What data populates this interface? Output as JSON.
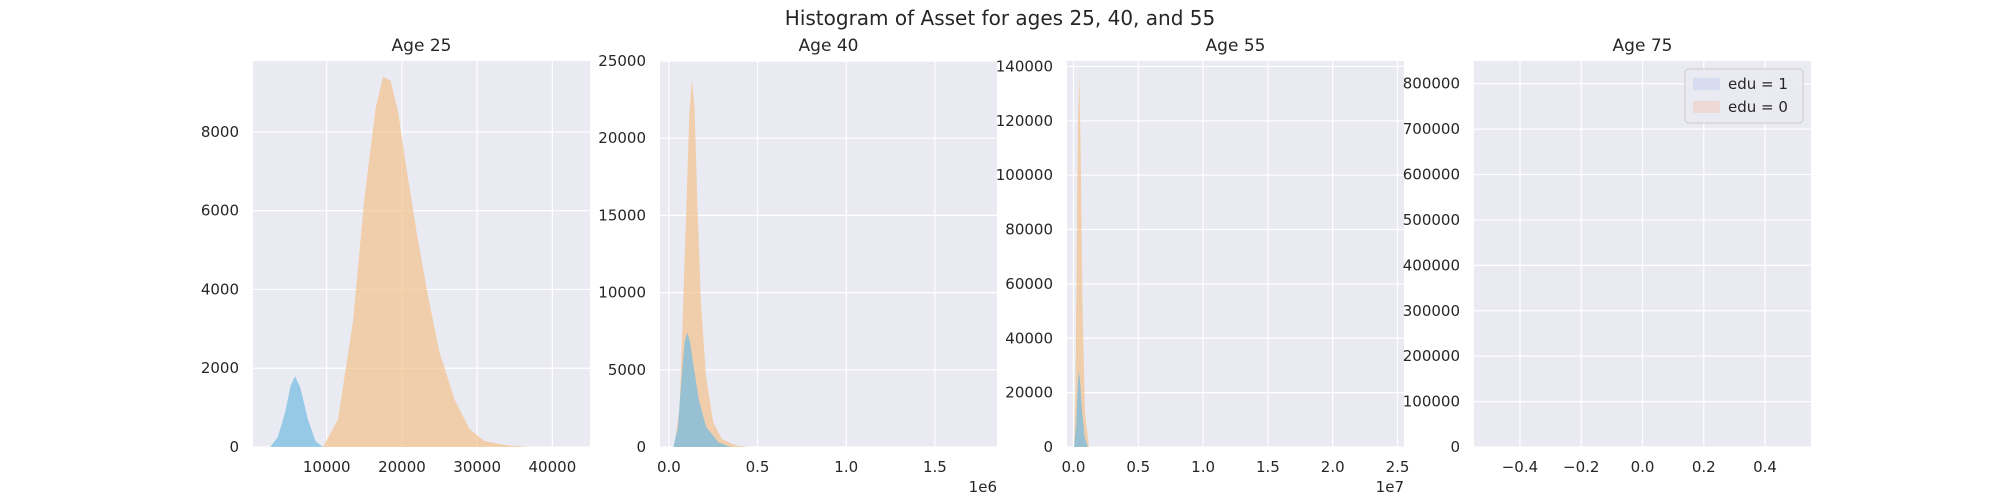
{
  "figure": {
    "title": "Histogram of Asset for ages 25, 40, and 55"
  },
  "colors": {
    "background": "#eaeaf2",
    "grid": "#ffffff",
    "edu1": "#74bde0",
    "edu0": "#f2c48f"
  },
  "chart_data": [
    {
      "type": "area",
      "title": "Age 25",
      "xlim": [
        200,
        45000
      ],
      "ylim": [
        0,
        9800
      ],
      "xticks": [
        10000,
        20000,
        30000,
        40000
      ],
      "xtick_labels": [
        "10000",
        "20000",
        "30000",
        "40000"
      ],
      "yticks": [
        0,
        2000,
        4000,
        6000,
        8000
      ],
      "ytick_labels": [
        "0",
        "2000",
        "4000",
        "6000",
        "8000"
      ],
      "x_offset_label": "",
      "grid": true,
      "series": [
        {
          "name": "edu = 0",
          "color_key": "edu0",
          "x": [
            9500,
            11500,
            13500,
            15000,
            16500,
            17500,
            18500,
            19500,
            20500,
            22000,
            23500,
            25000,
            27000,
            29000,
            31000,
            34000,
            37000
          ],
          "y": [
            0,
            700,
            3200,
            6300,
            8600,
            9400,
            9300,
            8500,
            7200,
            5400,
            3800,
            2400,
            1200,
            450,
            150,
            40,
            0
          ]
        },
        {
          "name": "edu = 1",
          "color_key": "edu1",
          "x": [
            2500,
            3500,
            4500,
            5200,
            5800,
            6500,
            7500,
            8500,
            9500
          ],
          "y": [
            0,
            250,
            900,
            1550,
            1800,
            1500,
            700,
            150,
            0
          ]
        }
      ]
    },
    {
      "type": "area",
      "title": "Age 40",
      "xlim": [
        -50000,
        1850000
      ],
      "ylim": [
        0,
        25000
      ],
      "xticks": [
        0,
        500000,
        1000000,
        1500000
      ],
      "xtick_labels": [
        "0.0",
        "0.5",
        "1.0",
        "1.5"
      ],
      "yticks": [
        0,
        5000,
        10000,
        15000,
        20000,
        25000
      ],
      "ytick_labels": [
        "0",
        "5000",
        "10000",
        "15000",
        "20000",
        "25000"
      ],
      "x_offset_label": "1e6",
      "grid": true,
      "series": [
        {
          "name": "edu = 0",
          "color_key": "edu0",
          "x": [
            30000,
            60000,
            80000,
            100000,
            115000,
            130000,
            145000,
            160000,
            180000,
            210000,
            250000,
            300000,
            380000,
            450000
          ],
          "y": [
            0,
            2500,
            9000,
            16000,
            21500,
            23800,
            22000,
            16000,
            9500,
            4500,
            1600,
            500,
            100,
            0
          ]
        },
        {
          "name": "edu = 1",
          "color_key": "edu1",
          "x": [
            25000,
            50000,
            70000,
            90000,
            105000,
            120000,
            140000,
            170000,
            210000,
            280000,
            350000
          ],
          "y": [
            0,
            1200,
            4200,
            6900,
            7400,
            6800,
            5200,
            3000,
            1300,
            300,
            0
          ]
        }
      ]
    },
    {
      "type": "area",
      "title": "Age 55",
      "xlim": [
        -500000,
        25500000
      ],
      "ylim": [
        0,
        142000
      ],
      "xticks": [
        0,
        5000000,
        10000000,
        15000000,
        20000000,
        25000000
      ],
      "xtick_labels": [
        "0.0",
        "0.5",
        "1.0",
        "1.5",
        "2.0",
        "2.5"
      ],
      "yticks": [
        0,
        20000,
        40000,
        60000,
        80000,
        100000,
        120000,
        140000
      ],
      "ytick_labels": [
        "0",
        "20000",
        "40000",
        "60000",
        "80000",
        "100000",
        "120000",
        "140000"
      ],
      "x_offset_label": "1e7",
      "grid": true,
      "series": [
        {
          "name": "edu = 0",
          "color_key": "edu0",
          "x": [
            50000,
            150000,
            250000,
            350000,
            450000,
            550000,
            700000,
            900000,
            1200000
          ],
          "y": [
            0,
            20000,
            70000,
            120000,
            137000,
            110000,
            50000,
            12000,
            0
          ]
        },
        {
          "name": "edu = 1",
          "color_key": "edu1",
          "x": [
            50000,
            200000,
            300000,
            400000,
            500000,
            650000,
            850000,
            1100000
          ],
          "y": [
            0,
            8000,
            20000,
            28000,
            25000,
            14000,
            4000,
            0
          ]
        }
      ]
    },
    {
      "type": "area",
      "title": "Age 75",
      "xlim": [
        -0.55,
        0.55
      ],
      "ylim": [
        0,
        850000
      ],
      "xticks": [
        -0.4,
        -0.2,
        0.0,
        0.2,
        0.4
      ],
      "xtick_labels": [
        "−0.4",
        "−0.2",
        "0.0",
        "0.2",
        "0.4"
      ],
      "yticks": [
        0,
        100000,
        200000,
        300000,
        400000,
        500000,
        600000,
        700000,
        800000
      ],
      "ytick_labels": [
        "0",
        "100000",
        "200000",
        "300000",
        "400000",
        "500000",
        "600000",
        "700000",
        "800000"
      ],
      "x_offset_label": "",
      "grid": true,
      "series": [],
      "legend": {
        "placement": "top-right",
        "entries": [
          {
            "label": "edu = 1",
            "color": "#d7dcf0"
          },
          {
            "label": "edu = 0",
            "color": "#eed9d6"
          }
        ]
      }
    }
  ]
}
